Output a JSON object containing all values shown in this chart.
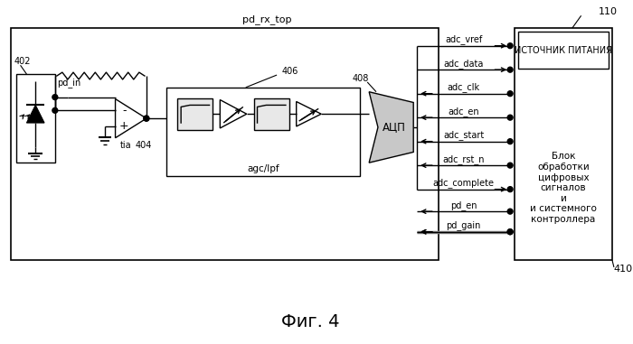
{
  "title": "Фиг. 4",
  "label_pd_rx_top": "pd_rx_top",
  "label_402": "402",
  "label_404": "404",
  "label_406": "406",
  "label_408": "408",
  "label_110": "110",
  "label_410": "410",
  "label_tia": "tia",
  "label_agclpf": "agc/lpf",
  "label_adc": "АЦП",
  "label_pd_in": "pd_in",
  "label_power": "ИСТОЧНИК ПИТАНИЯ",
  "label_dsp": "Блок\nобработки\nцифровых\nсигналов\nи\nи системного\nконтроллера",
  "signals_right": [
    "adc_vref",
    "adc_data",
    "adc_clk",
    "adc_en",
    "adc_start",
    "adc_rst_n",
    "adc_complete"
  ],
  "signal_dirs": [
    1,
    1,
    -1,
    -1,
    -1,
    -1,
    1
  ],
  "signals_bottom": [
    "pd_en",
    "pd_gain"
  ],
  "bg_color": "#ffffff"
}
